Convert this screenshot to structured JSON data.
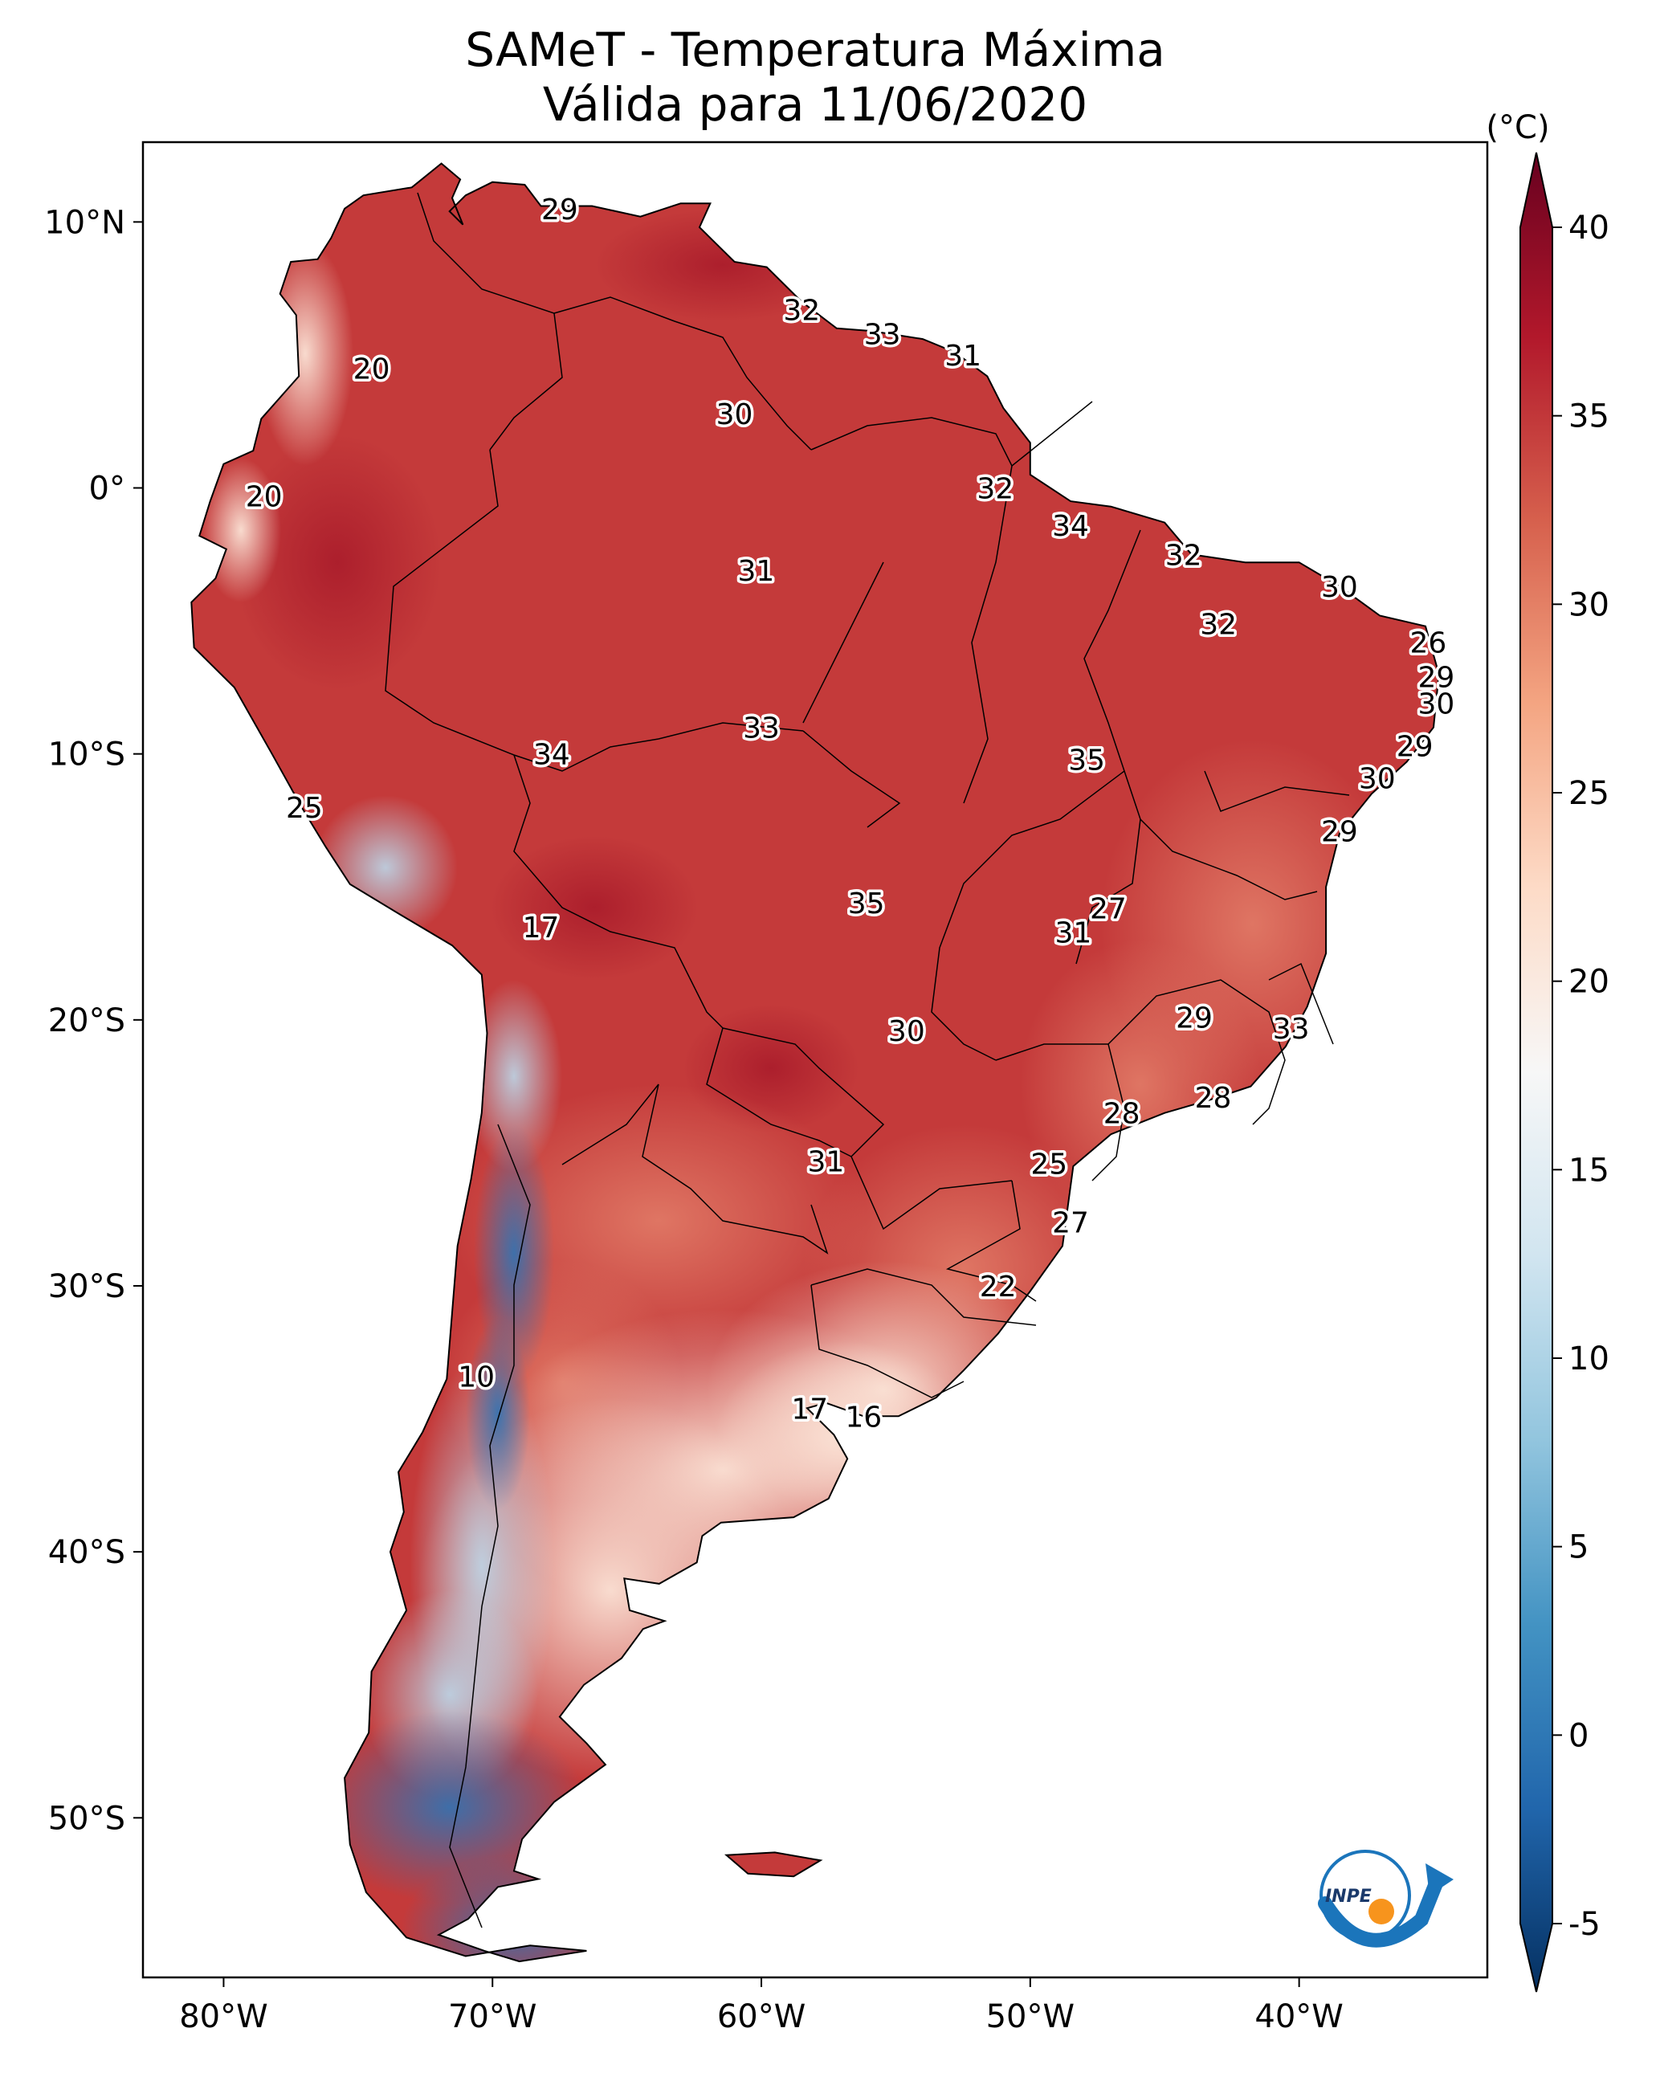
{
  "title": {
    "line1": "SAMeT - Temperatura Máxima",
    "line2": "Válida para 11/06/2020"
  },
  "map": {
    "region": "South America",
    "extent": {
      "lon_min": -83,
      "lon_max": -33,
      "lat_min": -56,
      "lat_max": 13
    },
    "x_ticks": [
      {
        "lon": -80,
        "label": "80°W"
      },
      {
        "lon": -70,
        "label": "70°W"
      },
      {
        "lon": -60,
        "label": "60°W"
      },
      {
        "lon": -50,
        "label": "50°W"
      },
      {
        "lon": -40,
        "label": "40°W"
      }
    ],
    "y_ticks": [
      {
        "lat": 10,
        "label": "10°N"
      },
      {
        "lat": 0,
        "label": "0°"
      },
      {
        "lat": -10,
        "label": "10°S"
      },
      {
        "lat": -20,
        "label": "20°S"
      },
      {
        "lat": -30,
        "label": "30°S"
      },
      {
        "lat": -40,
        "label": "40°S"
      },
      {
        "lat": -50,
        "label": "50°S"
      }
    ],
    "city_labels": [
      {
        "text": "29",
        "lon": -67.5,
        "lat": 10.5
      },
      {
        "text": "20",
        "lon": -74.5,
        "lat": 4.5
      },
      {
        "text": "32",
        "lon": -58.5,
        "lat": 6.7
      },
      {
        "text": "33",
        "lon": -55.5,
        "lat": 5.8
      },
      {
        "text": "31",
        "lon": -52.5,
        "lat": 5.0
      },
      {
        "text": "30",
        "lon": -61.0,
        "lat": 2.8
      },
      {
        "text": "20",
        "lon": -78.5,
        "lat": -0.3
      },
      {
        "text": "32",
        "lon": -51.3,
        "lat": 0.0
      },
      {
        "text": "34",
        "lon": -48.5,
        "lat": -1.4
      },
      {
        "text": "31",
        "lon": -60.2,
        "lat": -3.1
      },
      {
        "text": "32",
        "lon": -44.3,
        "lat": -2.5
      },
      {
        "text": "30",
        "lon": -38.5,
        "lat": -3.7
      },
      {
        "text": "32",
        "lon": -43.0,
        "lat": -5.1
      },
      {
        "text": "26",
        "lon": -35.2,
        "lat": -5.8
      },
      {
        "text": "29",
        "lon": -34.9,
        "lat": -7.1
      },
      {
        "text": "30",
        "lon": -34.9,
        "lat": -8.1
      },
      {
        "text": "33",
        "lon": -60.0,
        "lat": -9.0
      },
      {
        "text": "34",
        "lon": -67.8,
        "lat": -10.0
      },
      {
        "text": "35",
        "lon": -47.9,
        "lat": -10.2
      },
      {
        "text": "29",
        "lon": -35.7,
        "lat": -9.7
      },
      {
        "text": "30",
        "lon": -37.1,
        "lat": -10.9
      },
      {
        "text": "25",
        "lon": -77.0,
        "lat": -12.0
      },
      {
        "text": "29",
        "lon": -38.5,
        "lat": -12.9
      },
      {
        "text": "27",
        "lon": -47.1,
        "lat": -15.8
      },
      {
        "text": "35",
        "lon": -56.1,
        "lat": -15.6
      },
      {
        "text": "31",
        "lon": -48.4,
        "lat": -16.7
      },
      {
        "text": "17",
        "lon": -68.2,
        "lat": -16.5
      },
      {
        "text": "29",
        "lon": -43.9,
        "lat": -19.9
      },
      {
        "text": "33",
        "lon": -40.3,
        "lat": -20.3
      },
      {
        "text": "30",
        "lon": -54.6,
        "lat": -20.4
      },
      {
        "text": "28",
        "lon": -43.2,
        "lat": -22.9
      },
      {
        "text": "28",
        "lon": -46.6,
        "lat": -23.5
      },
      {
        "text": "31",
        "lon": -57.6,
        "lat": -25.3
      },
      {
        "text": "25",
        "lon": -49.3,
        "lat": -25.4
      },
      {
        "text": "27",
        "lon": -48.5,
        "lat": -27.6
      },
      {
        "text": "22",
        "lon": -51.2,
        "lat": -30.0
      },
      {
        "text": "10",
        "lon": -70.6,
        "lat": -33.4
      },
      {
        "text": "17",
        "lon": -58.2,
        "lat": -34.6
      },
      {
        "text": "16",
        "lon": -56.2,
        "lat": -34.9
      }
    ],
    "logo_text": "INPE"
  },
  "colorbar": {
    "unit": "(°C)",
    "min": -5,
    "max": 40,
    "ticks": [
      {
        "value": 40,
        "label": "40"
      },
      {
        "value": 35,
        "label": "35"
      },
      {
        "value": 30,
        "label": "30"
      },
      {
        "value": 25,
        "label": "25"
      },
      {
        "value": 20,
        "label": "20"
      },
      {
        "value": 15,
        "label": "15"
      },
      {
        "value": 10,
        "label": "10"
      },
      {
        "value": 5,
        "label": "5"
      },
      {
        "value": 0,
        "label": "0"
      },
      {
        "value": -5,
        "label": "-5"
      }
    ],
    "colors": [
      "#053061",
      "#2166ac",
      "#4393c3",
      "#92c5de",
      "#d1e5f0",
      "#f7f7f7",
      "#fddbc7",
      "#f4a582",
      "#d6604d",
      "#b2182b",
      "#67001f"
    ]
  }
}
